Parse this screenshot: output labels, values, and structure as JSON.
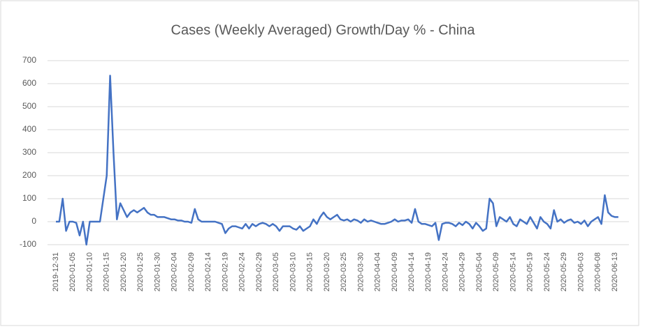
{
  "chart_data": {
    "type": "line",
    "title": "Cases (Weekly Averaged) Growth/Day % - China",
    "categories": [
      "2019-12-31",
      null,
      null,
      null,
      null,
      "2020-01-05",
      null,
      null,
      null,
      null,
      "2020-01-10",
      null,
      null,
      null,
      null,
      "2020-01-15",
      null,
      null,
      null,
      null,
      "2020-01-20",
      null,
      null,
      null,
      null,
      "2020-01-25",
      null,
      null,
      null,
      null,
      "2020-01-30",
      null,
      null,
      null,
      null,
      "2020-02-04",
      null,
      null,
      null,
      null,
      "2020-02-09",
      null,
      null,
      null,
      null,
      "2020-02-14",
      null,
      null,
      null,
      null,
      "2020-02-19",
      null,
      null,
      null,
      null,
      "2020-02-24",
      null,
      null,
      null,
      null,
      "2020-02-29",
      null,
      null,
      null,
      null,
      "2020-03-05",
      null,
      null,
      null,
      null,
      "2020-03-10",
      null,
      null,
      null,
      null,
      "2020-03-15",
      null,
      null,
      null,
      null,
      "2020-03-20",
      null,
      null,
      null,
      null,
      "2020-03-25",
      null,
      null,
      null,
      null,
      "2020-03-30",
      null,
      null,
      null,
      null,
      "2020-04-04",
      null,
      null,
      null,
      null,
      "2020-04-09",
      null,
      null,
      null,
      null,
      "2020-04-14",
      null,
      null,
      null,
      null,
      "2020-04-19",
      null,
      null,
      null,
      null,
      "2020-04-24",
      null,
      null,
      null,
      null,
      "2020-04-29",
      null,
      null,
      null,
      null,
      "2020-05-04",
      null,
      null,
      null,
      null,
      "2020-05-09",
      null,
      null,
      null,
      null,
      "2020-05-14",
      null,
      null,
      null,
      null,
      "2020-05-19",
      null,
      null,
      null,
      null,
      "2020-05-24",
      null,
      null,
      null,
      null,
      "2020-05-29",
      null,
      null,
      null,
      null,
      "2020-06-03",
      null,
      null,
      null,
      null,
      "2020-06-08",
      null,
      null,
      null,
      null,
      "2020-06-13",
      null
    ],
    "values": [
      0,
      0,
      100,
      -40,
      0,
      0,
      -5,
      -60,
      0,
      -100,
      0,
      0,
      0,
      0,
      100,
      200,
      635,
      300,
      10,
      80,
      50,
      20,
      40,
      50,
      40,
      50,
      60,
      40,
      30,
      30,
      20,
      20,
      20,
      15,
      10,
      10,
      5,
      5,
      0,
      0,
      -5,
      55,
      10,
      0,
      0,
      0,
      0,
      0,
      -5,
      -10,
      -50,
      -30,
      -20,
      -20,
      -25,
      -30,
      -10,
      -30,
      -10,
      -20,
      -10,
      -5,
      -10,
      -20,
      -10,
      -20,
      -40,
      -20,
      -20,
      -20,
      -30,
      -35,
      -20,
      -40,
      -30,
      -20,
      10,
      -10,
      20,
      40,
      20,
      10,
      20,
      30,
      10,
      5,
      10,
      0,
      10,
      5,
      -5,
      10,
      0,
      5,
      0,
      -5,
      -10,
      -10,
      -5,
      0,
      10,
      0,
      5,
      5,
      10,
      -5,
      55,
      0,
      -10,
      -10,
      -15,
      -20,
      -5,
      -80,
      -10,
      -5,
      -5,
      -10,
      -20,
      -5,
      -15,
      0,
      -10,
      -30,
      -5,
      -20,
      -40,
      -30,
      100,
      80,
      -20,
      20,
      10,
      0,
      20,
      -10,
      -20,
      10,
      0,
      -10,
      20,
      -5,
      -30,
      20,
      0,
      -10,
      -30,
      50,
      0,
      10,
      -5,
      5,
      10,
      -5,
      0,
      -10,
      5,
      -20,
      0,
      10,
      20,
      -10,
      115,
      40,
      25,
      20,
      20
    ],
    "color": "#4472c4",
    "ylim": [
      -100,
      700
    ],
    "yticks": [
      -100,
      0,
      100,
      200,
      300,
      400,
      500,
      600,
      700
    ],
    "grid": true
  }
}
